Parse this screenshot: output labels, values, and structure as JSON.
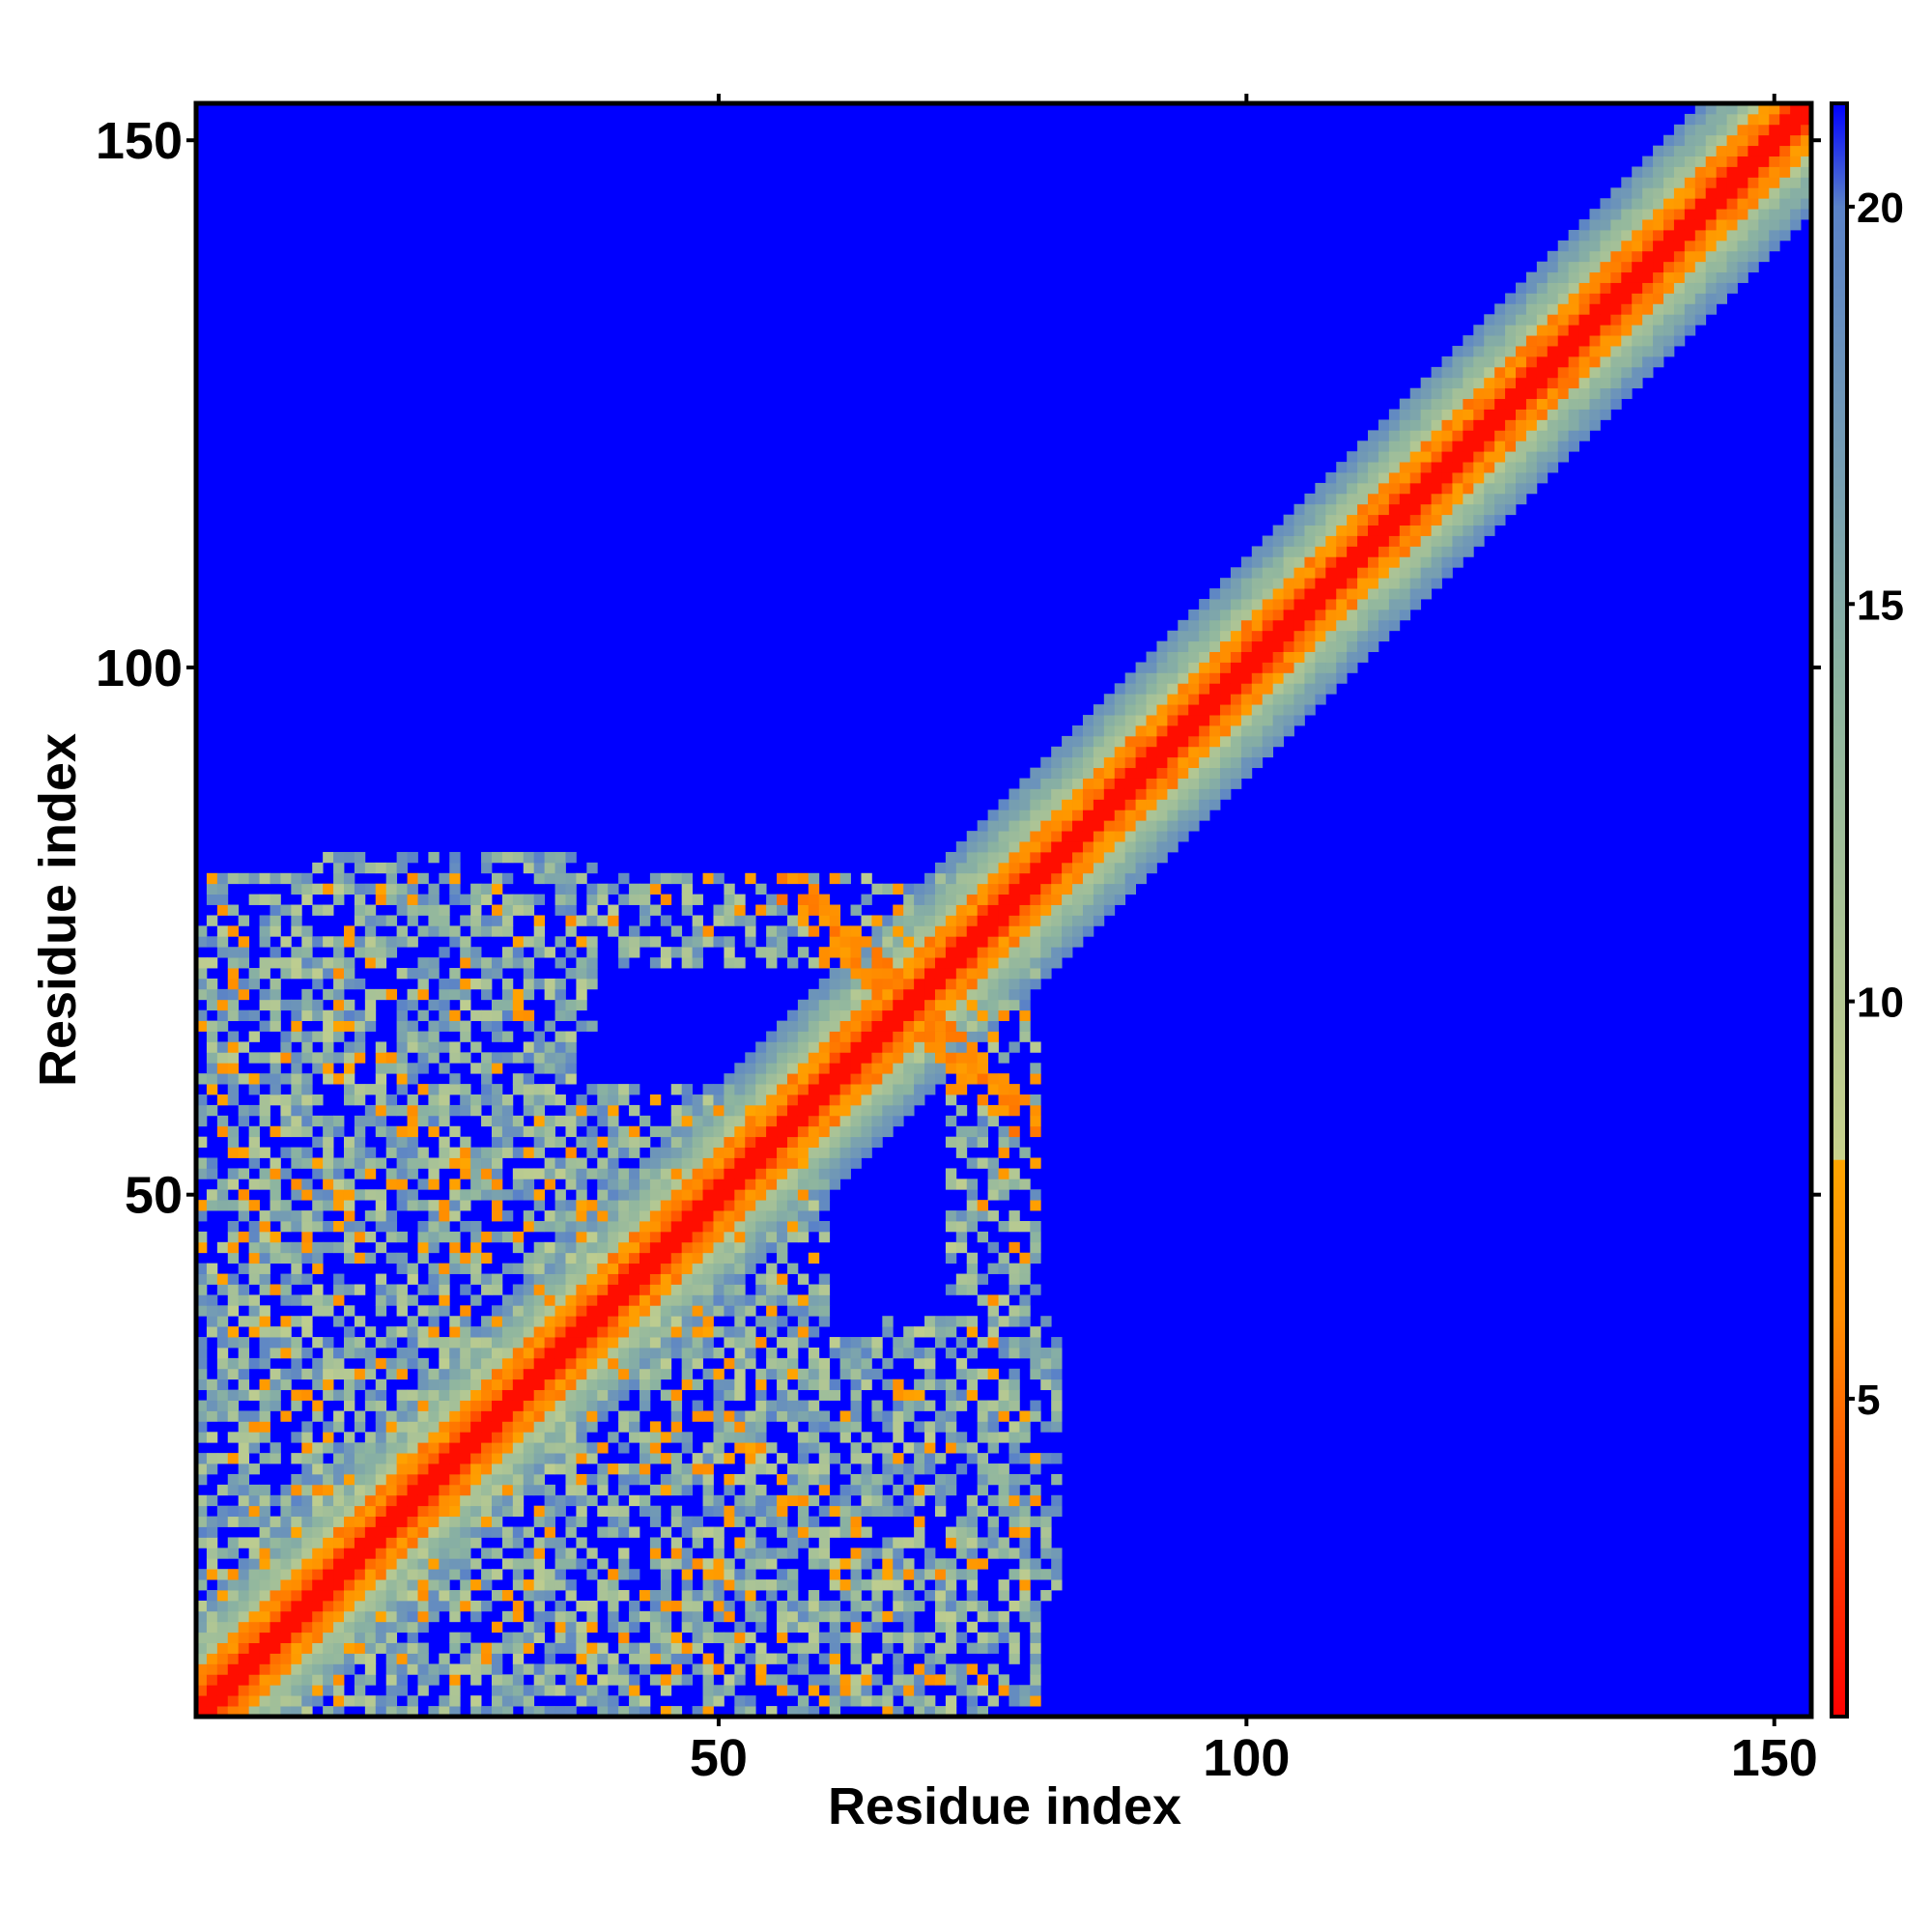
{
  "chart_data": {
    "type": "heatmap",
    "title": "",
    "xlabel": "Residue index",
    "ylabel": "Residue index",
    "n_residues": 153,
    "xlim": [
      1,
      153
    ],
    "ylim": [
      1,
      153
    ],
    "x_ticks": [
      50,
      100,
      150
    ],
    "y_ticks": [
      50,
      100,
      150
    ],
    "grid": false,
    "legend": "right",
    "colorbar": {
      "range": [
        1,
        21.3
      ],
      "ticks": [
        5,
        10,
        15,
        20
      ],
      "stops": [
        {
          "value": 1,
          "color": "#ff0000"
        },
        {
          "value": 6,
          "color": "#ff8c00"
        },
        {
          "value": 8,
          "color": "#ffa500"
        },
        {
          "value": 8.01,
          "color": "#c8d28c"
        },
        {
          "value": 14,
          "color": "#8cb4a0"
        },
        {
          "value": 20,
          "color": "#5a82c8"
        },
        {
          "value": 21.3,
          "color": "#0000ff"
        }
      ],
      "background_color": "#0000ff"
    },
    "contact_regions": [
      {
        "x": [
          1,
          153
        ],
        "y": [
          1,
          153
        ],
        "kind": "diagonal-band"
      },
      {
        "x": [
          1,
          50
        ],
        "y": [
          1,
          80
        ],
        "kind": "n-terminal-domain-contacts"
      },
      {
        "x": [
          1,
          82
        ],
        "y": [
          5,
          40
        ],
        "kind": "n-terminal-domain-contacts"
      },
      {
        "x": [
          55,
          82
        ],
        "y": [
          55,
          80
        ],
        "kind": "helix-contacts"
      },
      {
        "x": [
          66,
          82
        ],
        "y": [
          12,
          38
        ],
        "kind": "long-range-contacts"
      },
      {
        "x": [
          8,
          36
        ],
        "y": [
          68,
          80
        ],
        "kind": "long-range-contacts"
      }
    ]
  }
}
